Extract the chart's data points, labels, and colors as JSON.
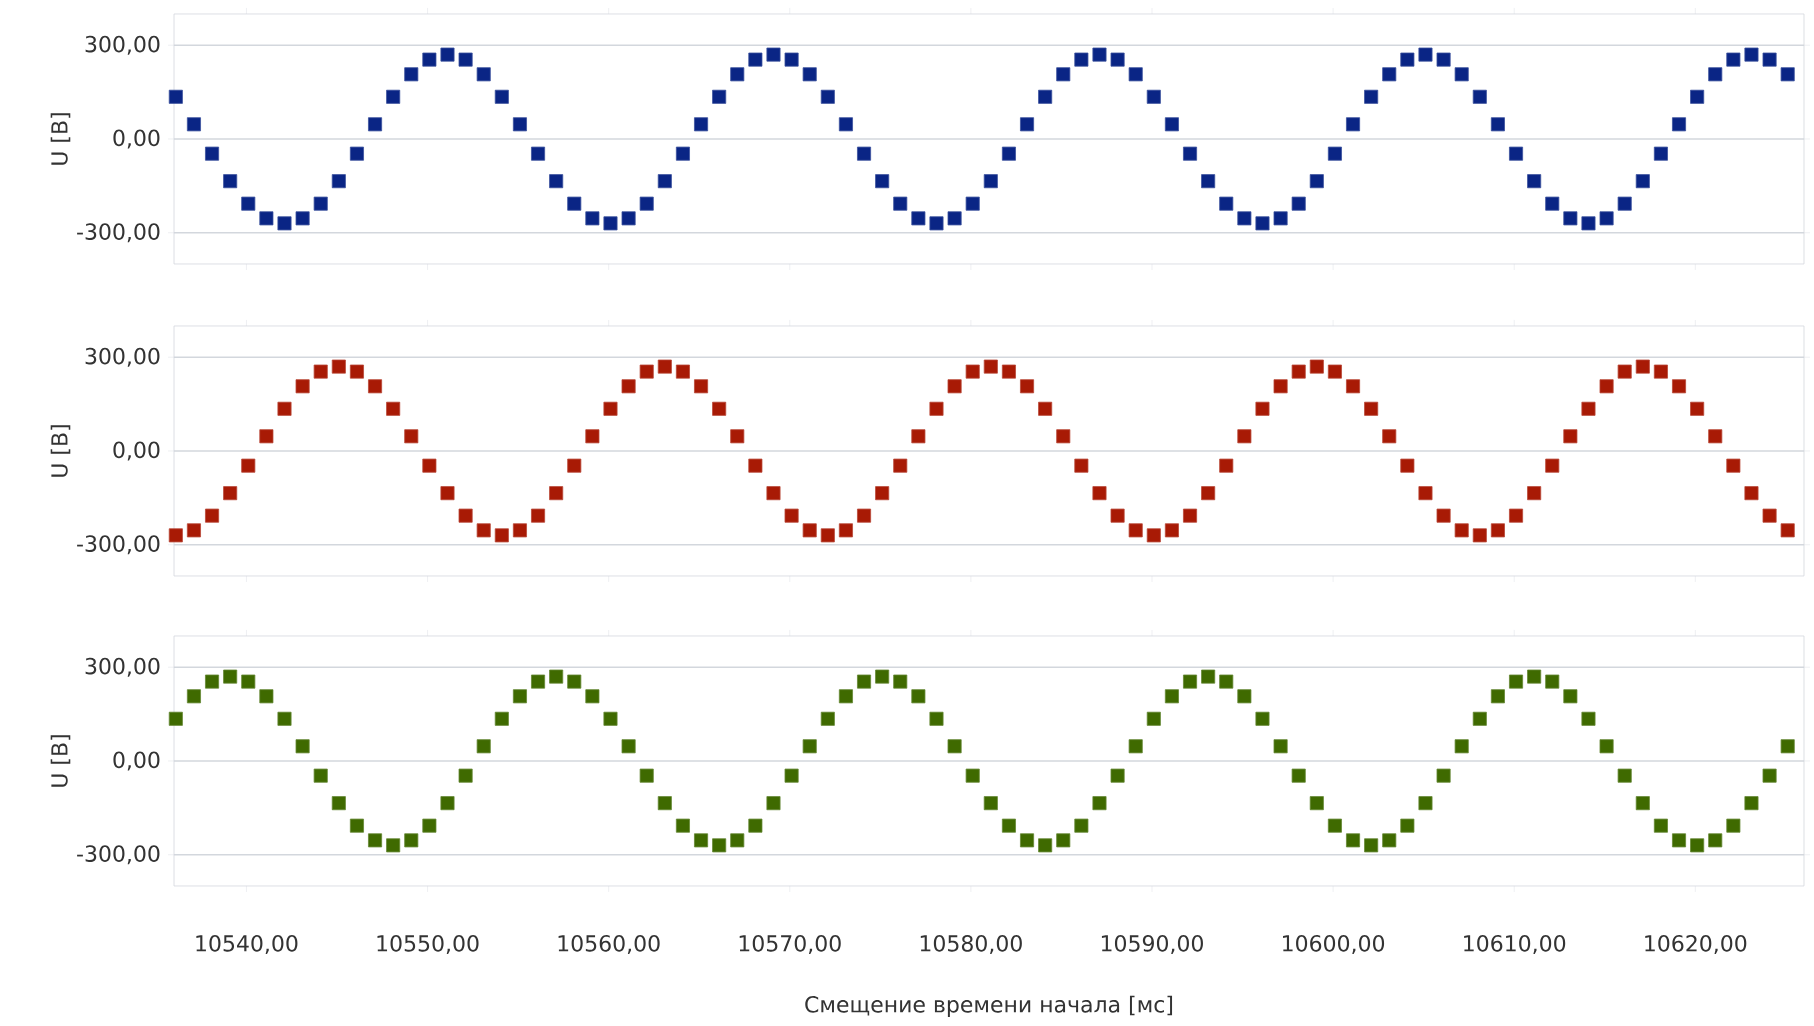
{
  "chart_data": [
    {
      "type": "scatter",
      "marker": "square",
      "grid": "y",
      "tick_labels": "y",
      "ylabel": "U [B]",
      "xlim": [
        10536,
        10626
      ],
      "ylim": [
        -400,
        400
      ],
      "xticks": [
        {
          "value": 10540,
          "label": null
        },
        {
          "value": 10550,
          "label": null
        },
        {
          "value": 10560,
          "label": null
        },
        {
          "value": 10570,
          "label": null
        },
        {
          "value": 10580,
          "label": null
        },
        {
          "value": 10590,
          "label": null
        },
        {
          "value": 10600,
          "label": null
        },
        {
          "value": 10610,
          "label": null
        },
        {
          "value": 10620,
          "label": null
        }
      ],
      "yticks": [
        {
          "value": -300,
          "label": "-300,00"
        },
        {
          "value": 0,
          "label": "0,00"
        },
        {
          "value": 300,
          "label": "300,00"
        }
      ],
      "x": [
        10536.1,
        10537.1,
        10538.1,
        10539.1,
        10540.1,
        10541.1,
        10542.1,
        10543.1,
        10544.1,
        10545.1,
        10546.1,
        10547.1,
        10548.1,
        10549.1,
        10550.1,
        10551.1,
        10552.1,
        10553.1,
        10554.1,
        10555.1,
        10556.1,
        10557.1,
        10558.1,
        10559.1,
        10560.1,
        10561.1,
        10562.1,
        10563.1,
        10564.1,
        10565.1,
        10566.1,
        10567.1,
        10568.1,
        10569.1,
        10570.1,
        10571.1,
        10572.1,
        10573.1,
        10574.1,
        10575.1,
        10576.1,
        10577.1,
        10578.1,
        10579.1,
        10580.1,
        10581.1,
        10582.1,
        10583.1,
        10584.1,
        10585.1,
        10586.1,
        10587.1,
        10588.1,
        10589.1,
        10590.1,
        10591.1,
        10592.1,
        10593.1,
        10594.1,
        10595.1,
        10596.1,
        10597.1,
        10598.1,
        10599.1,
        10600.1,
        10601.1,
        10602.1,
        10603.1,
        10604.1,
        10605.1,
        10606.1,
        10607.1,
        10608.1,
        10609.1,
        10610.1,
        10611.1,
        10612.1,
        10613.1,
        10614.1,
        10615.1,
        10616.1,
        10617.1,
        10618.1,
        10619.1,
        10620.1,
        10621.1,
        10622.1,
        10623.1,
        10624.1,
        10625.1
      ],
      "series": [
        {
          "color": "#0a2585",
          "values": [
            135,
            47,
            -47,
            -135,
            -207,
            -254,
            -270,
            -254,
            -207,
            -135,
            -47,
            47,
            135,
            207,
            254,
            270,
            254,
            207,
            135,
            47,
            -47,
            -135,
            -207,
            -254,
            -270,
            -254,
            -207,
            -135,
            -47,
            47,
            135,
            207,
            254,
            270,
            254,
            207,
            135,
            47,
            -47,
            -135,
            -207,
            -254,
            -270,
            -254,
            -207,
            -135,
            -47,
            47,
            135,
            207,
            254,
            270,
            254,
            207,
            135,
            47,
            -47,
            -135,
            -207,
            -254,
            -270,
            -254,
            -207,
            -135,
            -47,
            47,
            135,
            207,
            254,
            270,
            254,
            207,
            135,
            47,
            -47,
            -135,
            -207,
            -254,
            -270,
            -254,
            -207,
            -135,
            -47,
            47,
            135,
            207,
            254,
            270,
            254,
            207
          ]
        }
      ]
    },
    {
      "type": "scatter",
      "marker": "square",
      "grid": "y",
      "tick_labels": "y",
      "ylabel": "U [B]",
      "xlim": [
        10536,
        10626
      ],
      "ylim": [
        -400,
        400
      ],
      "xticks": [
        {
          "value": 10540,
          "label": null
        },
        {
          "value": 10550,
          "label": null
        },
        {
          "value": 10560,
          "label": null
        },
        {
          "value": 10570,
          "label": null
        },
        {
          "value": 10580,
          "label": null
        },
        {
          "value": 10590,
          "label": null
        },
        {
          "value": 10600,
          "label": null
        },
        {
          "value": 10610,
          "label": null
        },
        {
          "value": 10620,
          "label": null
        }
      ],
      "yticks": [
        {
          "value": -300,
          "label": "-300,00"
        },
        {
          "value": 0,
          "label": "0,00"
        },
        {
          "value": 300,
          "label": "300,00"
        }
      ],
      "x": [
        10536.1,
        10537.1,
        10538.1,
        10539.1,
        10540.1,
        10541.1,
        10542.1,
        10543.1,
        10544.1,
        10545.1,
        10546.1,
        10547.1,
        10548.1,
        10549.1,
        10550.1,
        10551.1,
        10552.1,
        10553.1,
        10554.1,
        10555.1,
        10556.1,
        10557.1,
        10558.1,
        10559.1,
        10560.1,
        10561.1,
        10562.1,
        10563.1,
        10564.1,
        10565.1,
        10566.1,
        10567.1,
        10568.1,
        10569.1,
        10570.1,
        10571.1,
        10572.1,
        10573.1,
        10574.1,
        10575.1,
        10576.1,
        10577.1,
        10578.1,
        10579.1,
        10580.1,
        10581.1,
        10582.1,
        10583.1,
        10584.1,
        10585.1,
        10586.1,
        10587.1,
        10588.1,
        10589.1,
        10590.1,
        10591.1,
        10592.1,
        10593.1,
        10594.1,
        10595.1,
        10596.1,
        10597.1,
        10598.1,
        10599.1,
        10600.1,
        10601.1,
        10602.1,
        10603.1,
        10604.1,
        10605.1,
        10606.1,
        10607.1,
        10608.1,
        10609.1,
        10610.1,
        10611.1,
        10612.1,
        10613.1,
        10614.1,
        10615.1,
        10616.1,
        10617.1,
        10618.1,
        10619.1,
        10620.1,
        10621.1,
        10622.1,
        10623.1,
        10624.1,
        10625.1
      ],
      "series": [
        {
          "color": "#a81a05",
          "values": [
            -270,
            -254,
            -207,
            -135,
            -47,
            47,
            135,
            207,
            254,
            270,
            254,
            207,
            135,
            47,
            -47,
            -135,
            -207,
            -254,
            -270,
            -254,
            -207,
            -135,
            -47,
            47,
            135,
            207,
            254,
            270,
            254,
            207,
            135,
            47,
            -47,
            -135,
            -207,
            -254,
            -270,
            -254,
            -207,
            -135,
            -47,
            47,
            135,
            207,
            254,
            270,
            254,
            207,
            135,
            47,
            -47,
            -135,
            -207,
            -254,
            -270,
            -254,
            -207,
            -135,
            -47,
            47,
            135,
            207,
            254,
            270,
            254,
            207,
            135,
            47,
            -47,
            -135,
            -207,
            -254,
            -270,
            -254,
            -207,
            -135,
            -47,
            47,
            135,
            207,
            254,
            270,
            254,
            207,
            135,
            47,
            -47,
            -135,
            -207,
            -254
          ]
        }
      ]
    },
    {
      "type": "scatter",
      "marker": "square",
      "grid": "y",
      "xlabel": "Смещение времени начала [мс]",
      "ylabel": "U [B]",
      "xlim": [
        10536,
        10626
      ],
      "ylim": [
        -400,
        400
      ],
      "xticks": [
        {
          "value": 10540,
          "label": "10540,00"
        },
        {
          "value": 10550,
          "label": "10550,00"
        },
        {
          "value": 10560,
          "label": "10560,00"
        },
        {
          "value": 10570,
          "label": "10570,00"
        },
        {
          "value": 10580,
          "label": "10580,00"
        },
        {
          "value": 10590,
          "label": "10590,00"
        },
        {
          "value": 10600,
          "label": "10600,00"
        },
        {
          "value": 10610,
          "label": "10610,00"
        },
        {
          "value": 10620,
          "label": "10620,00"
        }
      ],
      "yticks": [
        {
          "value": -300,
          "label": "-300,00"
        },
        {
          "value": 0,
          "label": "0,00"
        },
        {
          "value": 300,
          "label": "300,00"
        }
      ],
      "x": [
        10536.1,
        10537.1,
        10538.1,
        10539.1,
        10540.1,
        10541.1,
        10542.1,
        10543.1,
        10544.1,
        10545.1,
        10546.1,
        10547.1,
        10548.1,
        10549.1,
        10550.1,
        10551.1,
        10552.1,
        10553.1,
        10554.1,
        10555.1,
        10556.1,
        10557.1,
        10558.1,
        10559.1,
        10560.1,
        10561.1,
        10562.1,
        10563.1,
        10564.1,
        10565.1,
        10566.1,
        10567.1,
        10568.1,
        10569.1,
        10570.1,
        10571.1,
        10572.1,
        10573.1,
        10574.1,
        10575.1,
        10576.1,
        10577.1,
        10578.1,
        10579.1,
        10580.1,
        10581.1,
        10582.1,
        10583.1,
        10584.1,
        10585.1,
        10586.1,
        10587.1,
        10588.1,
        10589.1,
        10590.1,
        10591.1,
        10592.1,
        10593.1,
        10594.1,
        10595.1,
        10596.1,
        10597.1,
        10598.1,
        10599.1,
        10600.1,
        10601.1,
        10602.1,
        10603.1,
        10604.1,
        10605.1,
        10606.1,
        10607.1,
        10608.1,
        10609.1,
        10610.1,
        10611.1,
        10612.1,
        10613.1,
        10614.1,
        10615.1,
        10616.1,
        10617.1,
        10618.1,
        10619.1,
        10620.1,
        10621.1,
        10622.1,
        10623.1,
        10624.1,
        10625.1
      ],
      "series": [
        {
          "color": "#3f6a00",
          "values": [
            135,
            207,
            254,
            270,
            254,
            207,
            135,
            47,
            -47,
            -135,
            -207,
            -254,
            -270,
            -254,
            -207,
            -135,
            -47,
            47,
            135,
            207,
            254,
            270,
            254,
            207,
            135,
            47,
            -47,
            -135,
            -207,
            -254,
            -270,
            -254,
            -207,
            -135,
            -47,
            47,
            135,
            207,
            254,
            270,
            254,
            207,
            135,
            47,
            -47,
            -135,
            -207,
            -254,
            -270,
            -254,
            -207,
            -135,
            -47,
            47,
            135,
            207,
            254,
            270,
            254,
            207,
            135,
            47,
            -47,
            -135,
            -207,
            -254,
            -270,
            -254,
            -207,
            -135,
            -47,
            47,
            135,
            207,
            254,
            270,
            254,
            207,
            135,
            47,
            -47,
            -135,
            -207,
            -254,
            -270,
            -254,
            -207,
            -135,
            -47,
            47
          ]
        }
      ]
    }
  ]
}
